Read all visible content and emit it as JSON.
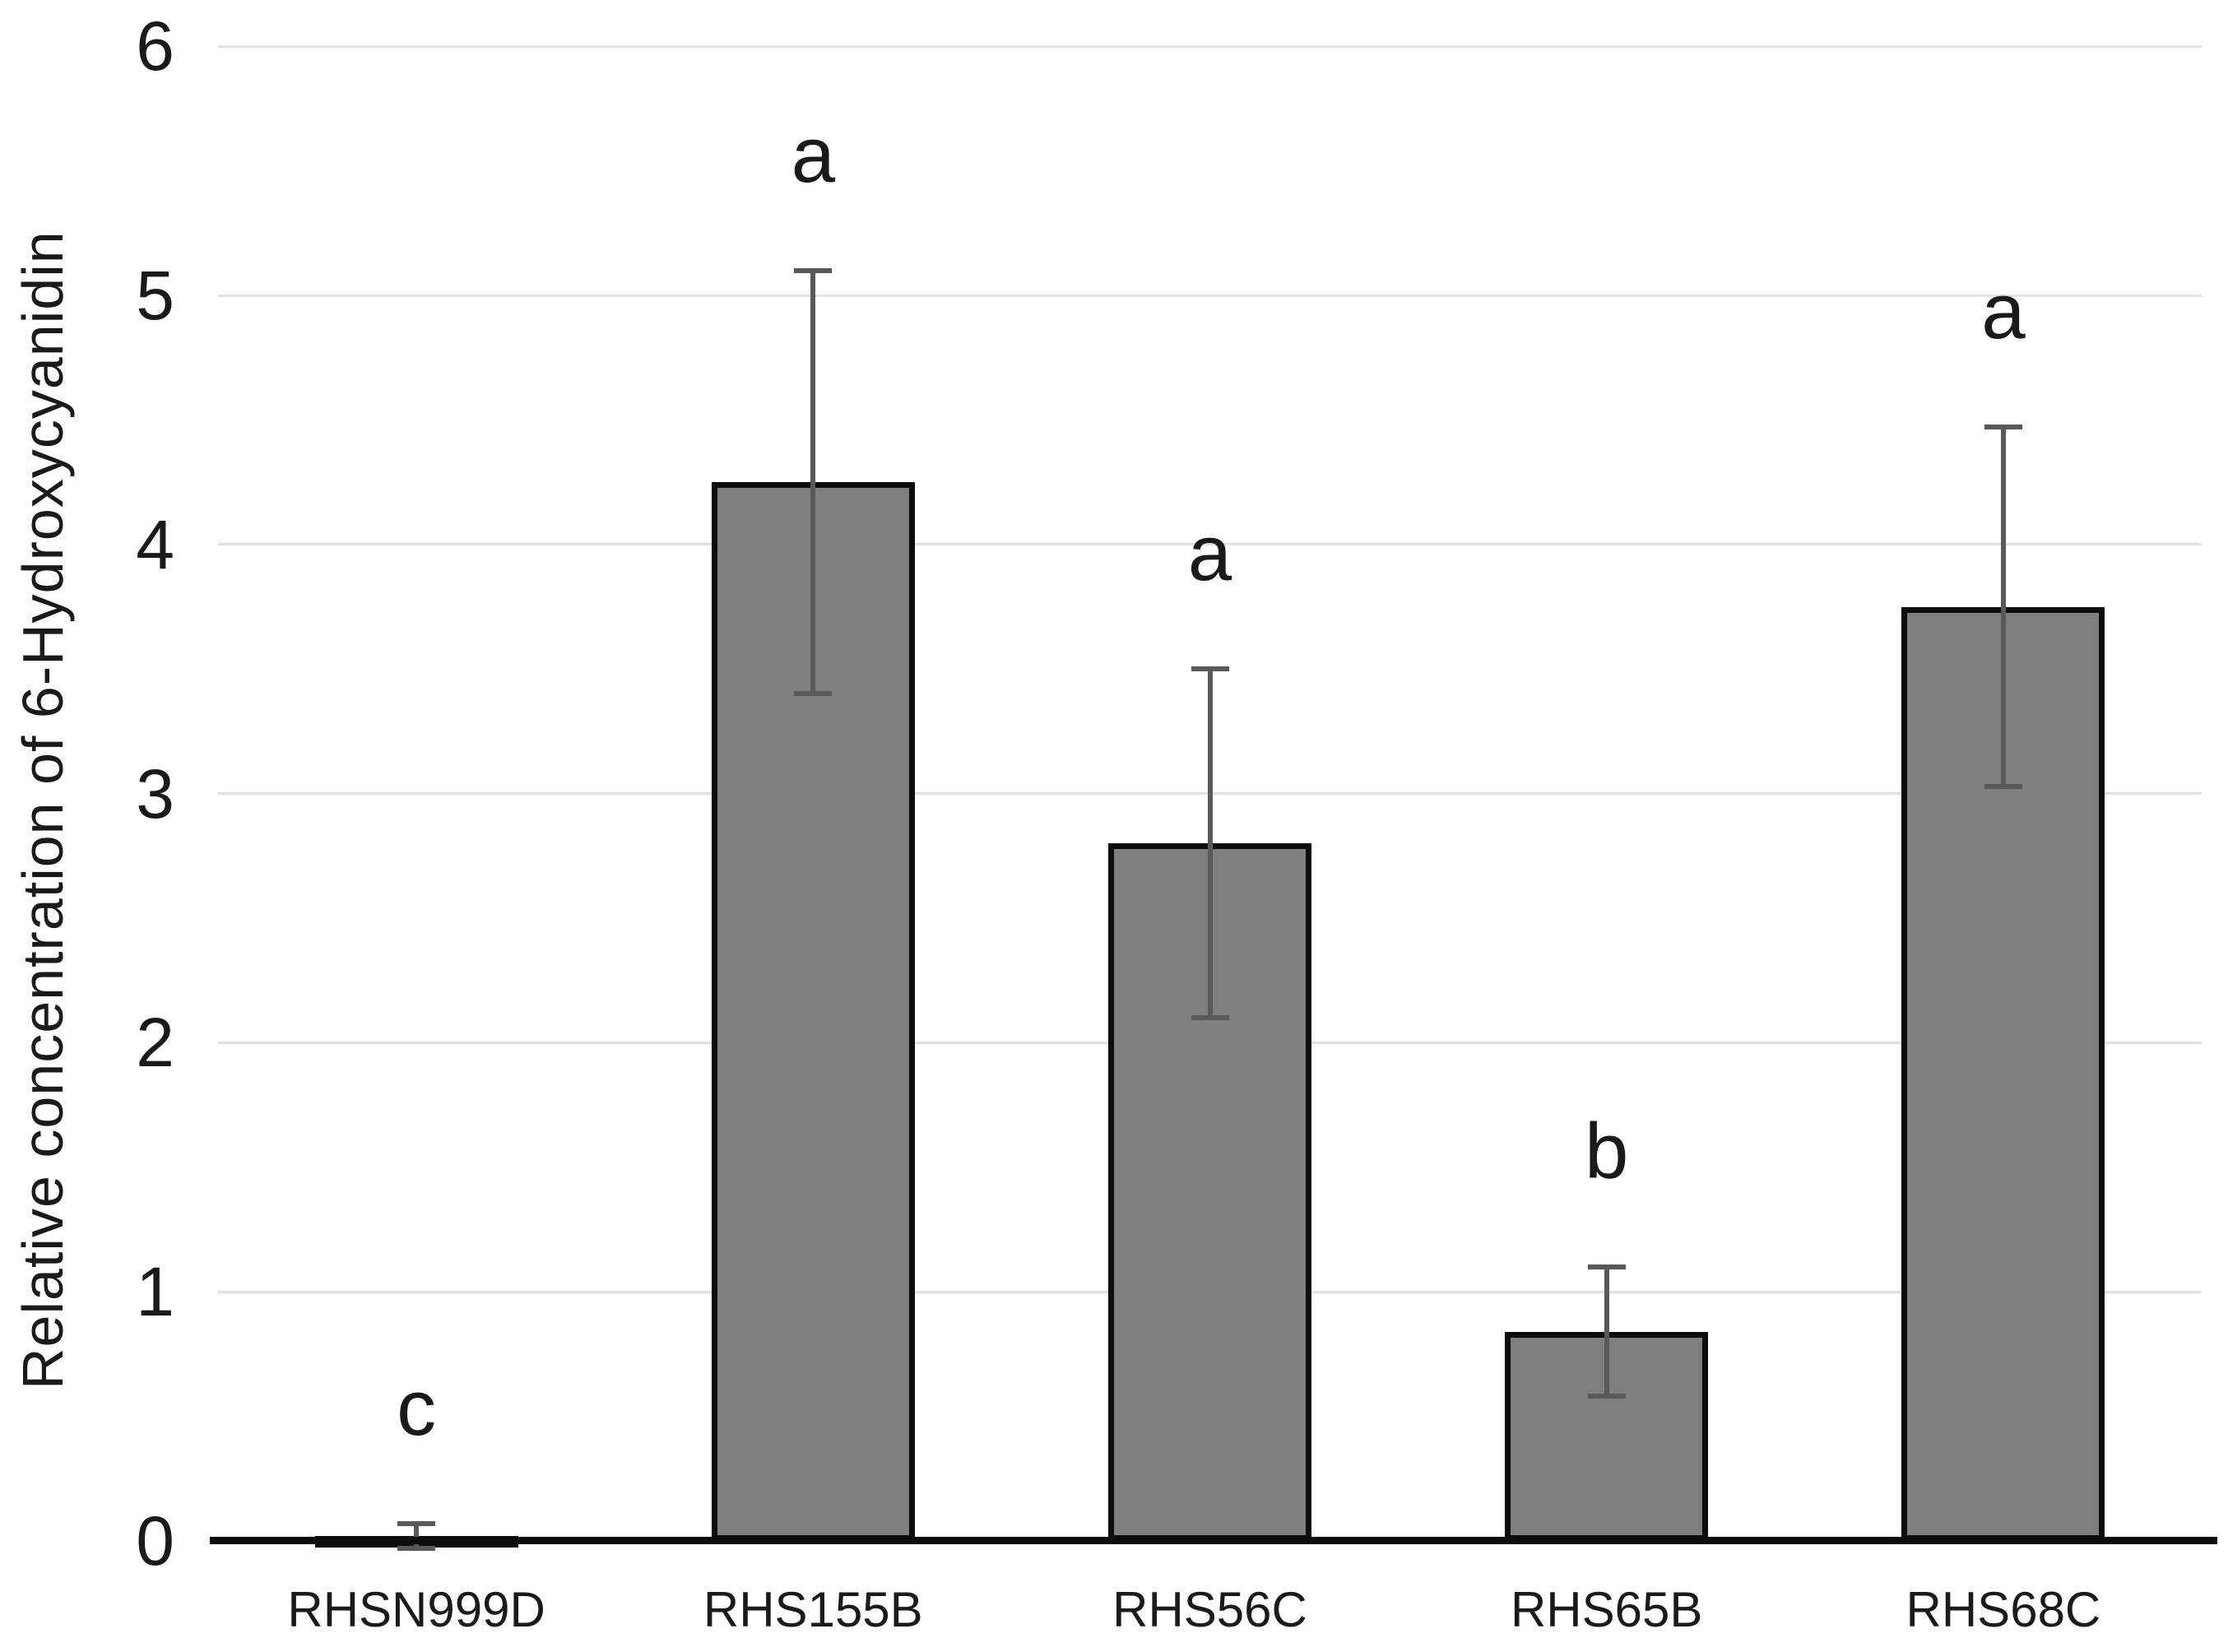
{
  "chart_data": {
    "type": "bar",
    "title": "",
    "xlabel": "",
    "ylabel": "Relative concentration of 6-Hydroxycyanidin",
    "categories": [
      "RHSN999D",
      "RHS155B",
      "RHS56C",
      "RHS65B",
      "RHS68C"
    ],
    "values": [
      0.02,
      4.25,
      2.8,
      0.84,
      3.75
    ],
    "error_bars": [
      0.05,
      0.85,
      0.7,
      0.26,
      0.72
    ],
    "significance_letters": [
      "c",
      "a",
      "a",
      "b",
      "a"
    ],
    "y_ticks": [
      0,
      1,
      2,
      3,
      4,
      5,
      6
    ],
    "ylim": [
      0,
      6
    ],
    "grid": true,
    "legend": false,
    "bar_color": "#7f7f7f",
    "bar_border_color": "#0d0d0d",
    "error_bar_color": "#595959",
    "gridline_color": "#e2e2e2",
    "axis_color": "#0d0d0d",
    "text_color": "#1a1a1a"
  }
}
